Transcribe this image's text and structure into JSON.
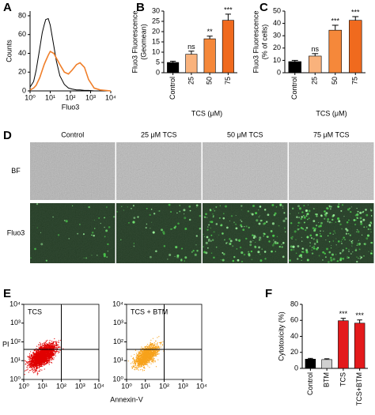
{
  "chart_data": [
    {
      "type": "line",
      "panel": "A",
      "ylabel": [
        "Counts"
      ],
      "xlabel": "Fluo3",
      "xlog": true,
      "xlim": [
        1,
        10000
      ],
      "xticks": [
        {
          "value": 1,
          "label": "10⁰"
        },
        {
          "value": 10,
          "label": "10¹"
        },
        {
          "value": 100,
          "label": "10²"
        },
        {
          "value": 1000,
          "label": "10³"
        },
        {
          "value": 10000,
          "label": "10⁴"
        }
      ],
      "ylim": [
        0,
        85
      ],
      "yticks": [
        0,
        20,
        40,
        60,
        80
      ],
      "x": [
        1,
        1.5,
        2,
        3,
        4,
        5,
        6,
        8,
        10,
        15,
        20,
        30,
        50,
        80,
        120,
        200,
        300,
        500,
        800,
        1500,
        3000,
        10000
      ],
      "series": [
        {
          "color": "#000000",
          "values": [
            4,
            10,
            22,
            45,
            62,
            70,
            76,
            77,
            70,
            48,
            32,
            16,
            7,
            3,
            2,
            1,
            1,
            0.5,
            0.5,
            0,
            0,
            0
          ]
        },
        {
          "color": "#f07f2a",
          "values": [
            1,
            3,
            6,
            14,
            22,
            28,
            32,
            38,
            42,
            40,
            35,
            28,
            20,
            18,
            22,
            28,
            30,
            25,
            12,
            3,
            1,
            0
          ]
        }
      ]
    },
    {
      "type": "bar",
      "panel": "B",
      "ylabel": [
        "Fluo3 Fluorescence",
        "(Geomean)"
      ],
      "xlabel": "TCS (μM)",
      "categories": [
        "Control",
        "25",
        "50",
        "75"
      ],
      "values": [
        5,
        9,
        16.5,
        25.5
      ],
      "errors": [
        0.6,
        1.5,
        1.3,
        3
      ],
      "colors": [
        "#000000",
        "#f9b27c",
        "#f5883a",
        "#f06a1e"
      ],
      "annotations": [
        null,
        "ns",
        "**",
        "***"
      ],
      "ylim": [
        0,
        30
      ],
      "yticks": [
        0,
        5,
        10,
        15,
        20,
        25,
        30
      ]
    },
    {
      "type": "bar",
      "panel": "C",
      "ylabel": [
        "Fluo3 Fluorescence",
        "(% of cells)"
      ],
      "xlabel": "TCS (μM)",
      "categories": [
        "Control",
        "25",
        "50",
        "75"
      ],
      "values": [
        9,
        13.5,
        34.5,
        42.5
      ],
      "errors": [
        1,
        2,
        4,
        3
      ],
      "colors": [
        "#000000",
        "#f9b27c",
        "#f5883a",
        "#f06a1e"
      ],
      "annotations": [
        null,
        "ns",
        "***",
        "***"
      ],
      "ylim": [
        0,
        50
      ],
      "yticks": [
        0,
        10,
        20,
        30,
        40,
        50
      ]
    },
    {
      "type": "bar",
      "panel": "F",
      "ylabel": [
        "Cytotoxicity (%)"
      ],
      "categories": [
        "Control",
        "BTM",
        "TCS",
        "TCS+BTM"
      ],
      "values": [
        11.5,
        11,
        59.5,
        56.5
      ],
      "errors": [
        1,
        1,
        3,
        4
      ],
      "colors": [
        "#000000",
        "#d0d0d0",
        "#e31a1c",
        "#e31a1c"
      ],
      "annotations": [
        null,
        null,
        "***",
        "***"
      ],
      "ylim": [
        0,
        80
      ],
      "yticks": [
        0,
        20,
        40,
        60,
        80
      ]
    }
  ],
  "image_grid": {
    "panel": "D",
    "columns": [
      "Control",
      "25 μM TCS",
      "50 μM TCS",
      "75 μM TCS"
    ],
    "rows": [
      "BF",
      "Fluo3"
    ]
  },
  "flow_plots": {
    "panel": "E",
    "titles": [
      "TCS",
      "TCS + BTM"
    ],
    "xlabel": "Annexin-V",
    "ylabel": "PI",
    "lim": [
      1,
      10000
    ],
    "gate_x": 100,
    "gate_y": 40,
    "ticks": [
      {
        "value": 1,
        "label": "10⁰"
      },
      {
        "value": 10,
        "label": "10¹"
      },
      {
        "value": 100,
        "label": "10²"
      },
      {
        "value": 1000,
        "label": "10³"
      },
      {
        "value": 10000,
        "label": "10⁴"
      }
    ]
  }
}
